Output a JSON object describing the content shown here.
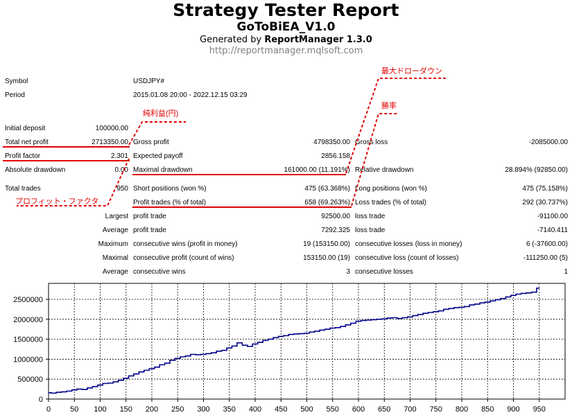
{
  "header": {
    "title": "Strategy Tester Report",
    "subtitle": "GoToBiEA_V1.0",
    "generated_prefix": "Generated by ",
    "generator": "ReportManager 1.3.0",
    "url": "http://reportmanager.mqlsoft.com"
  },
  "info": {
    "symbol_label": "Symbol",
    "symbol": "USDJPY#",
    "period_label": "Period",
    "period": "2015.01.08 20:00 - 2022.12.15 03:29"
  },
  "stats": {
    "initial_deposit_label": "Initial deposit",
    "initial_deposit": "100000.00",
    "total_net_profit_label": "Total net profit",
    "total_net_profit": "2713350.00",
    "gross_profit_label": "Gross profit",
    "gross_profit": "4798350.00",
    "gross_loss_label": "Gross loss",
    "gross_loss": "-2085000.00",
    "profit_factor_label": "Profit factor",
    "profit_factor": "2.301",
    "expected_payoff_label": "Expected payoff",
    "expected_payoff": "2856.158",
    "absolute_drawdown_label": "Absolute drawdown",
    "absolute_drawdown": "0.00",
    "maximal_drawdown_label": "Maximal drawdown",
    "maximal_drawdown": "161000.00 (11.191%)",
    "relative_drawdown_label": "Relative drawdown",
    "relative_drawdown": "28.894% (92850.00)",
    "total_trades_label": "Total trades",
    "total_trades": "950",
    "short_positions_label": "Short positions (won %)",
    "short_positions": "475 (63.368%)",
    "long_positions_label": "Long positions (won %)",
    "long_positions": "475 (75.158%)",
    "profit_trades_label": "Profit trades (% of total)",
    "profit_trades": "658 (69.263%)",
    "loss_trades_label": "Loss trades (% of total)",
    "loss_trades": "292 (30.737%)",
    "largest_label": "Largest",
    "largest_profit_label": "profit trade",
    "largest_profit": "92500.00",
    "largest_loss_label": "loss trade",
    "largest_loss": "-91100.00",
    "average_label": "Average",
    "average_profit_label": "profit trade",
    "average_profit": "7292.325",
    "average_loss_label": "loss trade",
    "average_loss": "-7140.411",
    "maximum_label": "Maximum",
    "max_consec_wins_label": "consecutive wins (profit in money)",
    "max_consec_wins": "19 (153150.00)",
    "max_consec_losses_label": "consecutive losses (loss in money)",
    "max_consec_losses": "6 (-37600.00)",
    "maximal_label": "Maximal",
    "maximal_consec_profit_label": "consecutive profit (count of wins)",
    "maximal_consec_profit": "153150.00 (19)",
    "maximal_consec_loss_label": "consecutive loss (count of losses)",
    "maximal_consec_loss": "-111250.00 (5)",
    "average2_label": "Average",
    "avg_consec_wins_label": "consecutive wins",
    "avg_consec_wins": "3",
    "avg_consec_losses_label": "consecutive losses",
    "avg_consec_losses": "1"
  },
  "annotations": {
    "net_profit_yen": "純利益(円)",
    "profit_factor": "プロフィット・ファクタ",
    "max_drawdown": "最大ドローダウン",
    "win_rate": "勝率",
    "color": "#e00000"
  },
  "chart_data": {
    "type": "line",
    "title": "",
    "xlabel": "",
    "ylabel": "",
    "xlim": [
      0,
      1000
    ],
    "ylim": [
      0,
      2900000
    ],
    "xticks": [
      0,
      50,
      100,
      150,
      200,
      250,
      300,
      350,
      400,
      450,
      500,
      550,
      600,
      650,
      700,
      750,
      800,
      850,
      900,
      950
    ],
    "yticks": [
      0,
      500000,
      1000000,
      1500000,
      2000000,
      2500000
    ],
    "grid": true,
    "line_color": "#00008b",
    "x": [
      0,
      10,
      20,
      30,
      40,
      50,
      60,
      70,
      80,
      90,
      100,
      110,
      120,
      130,
      140,
      150,
      160,
      170,
      180,
      190,
      200,
      210,
      220,
      230,
      240,
      250,
      260,
      270,
      280,
      290,
      300,
      310,
      320,
      330,
      340,
      350,
      360,
      370,
      380,
      390,
      400,
      410,
      420,
      430,
      440,
      450,
      460,
      470,
      480,
      490,
      500,
      510,
      520,
      530,
      540,
      550,
      560,
      570,
      580,
      590,
      600,
      610,
      620,
      630,
      640,
      650,
      660,
      670,
      680,
      690,
      700,
      710,
      720,
      730,
      740,
      750,
      760,
      770,
      780,
      790,
      800,
      810,
      820,
      830,
      840,
      850,
      860,
      870,
      880,
      890,
      900,
      910,
      920,
      930,
      940,
      950
    ],
    "values": [
      160000,
      150000,
      170000,
      180000,
      200000,
      230000,
      250000,
      240000,
      280000,
      310000,
      350000,
      390000,
      400000,
      430000,
      470000,
      520000,
      580000,
      630000,
      680000,
      720000,
      760000,
      800000,
      860000,
      900000,
      970000,
      1020000,
      1060000,
      1080000,
      1120000,
      1110000,
      1120000,
      1140000,
      1160000,
      1200000,
      1220000,
      1280000,
      1330000,
      1410000,
      1350000,
      1320000,
      1380000,
      1420000,
      1470000,
      1500000,
      1540000,
      1570000,
      1590000,
      1620000,
      1630000,
      1640000,
      1650000,
      1680000,
      1700000,
      1730000,
      1750000,
      1780000,
      1790000,
      1820000,
      1860000,
      1900000,
      1950000,
      1970000,
      1980000,
      1990000,
      2000000,
      2010000,
      2030000,
      2040000,
      2020000,
      2040000,
      2060000,
      2090000,
      2120000,
      2150000,
      2170000,
      2190000,
      2210000,
      2250000,
      2270000,
      2290000,
      2300000,
      2320000,
      2360000,
      2380000,
      2410000,
      2430000,
      2460000,
      2490000,
      2520000,
      2560000,
      2600000,
      2630000,
      2650000,
      2660000,
      2680000,
      2780000
    ]
  }
}
